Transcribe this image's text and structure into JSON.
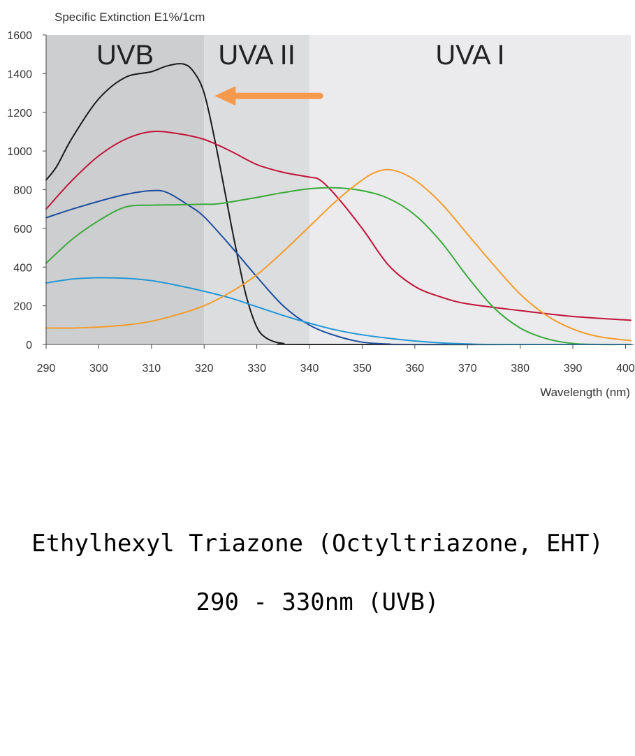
{
  "chart_data": {
    "type": "line",
    "title": "",
    "ylabel": "Specific Extinction E1%/1cm",
    "xlabel": "Wavelength (nm)",
    "xlim": [
      290,
      401
    ],
    "ylim": [
      0,
      1600
    ],
    "xticks": [
      290,
      300,
      310,
      320,
      330,
      340,
      350,
      360,
      370,
      380,
      390,
      400
    ],
    "yticks": [
      0,
      200,
      400,
      600,
      800,
      1000,
      1200,
      1400,
      1600
    ],
    "grid": false,
    "legend": "none",
    "bands": [
      {
        "label": "UVB",
        "from": 290,
        "to": 320,
        "color": "#cdcecf"
      },
      {
        "label": "UVA II",
        "from": 320,
        "to": 340,
        "color": "#dcdddf"
      },
      {
        "label": "UVA I",
        "from": 340,
        "to": 401,
        "color": "#ebebed"
      }
    ],
    "arrow": {
      "from": [
        342,
        1285
      ],
      "to": [
        322,
        1285
      ],
      "color": "#f5994d"
    },
    "series": [
      {
        "color": "#1a1a1a",
        "points": [
          [
            290,
            850
          ],
          [
            292,
            920
          ],
          [
            295,
            1070
          ],
          [
            300,
            1270
          ],
          [
            305,
            1380
          ],
          [
            310,
            1410
          ],
          [
            313,
            1440
          ],
          [
            316,
            1450
          ],
          [
            318,
            1410
          ],
          [
            320,
            1300
          ],
          [
            322,
            1060
          ],
          [
            324,
            780
          ],
          [
            326,
            500
          ],
          [
            328,
            250
          ],
          [
            330,
            90
          ],
          [
            332,
            30
          ],
          [
            335,
            5
          ],
          [
            340,
            0
          ],
          [
            401,
            0
          ]
        ]
      },
      {
        "color": "#c0143c",
        "points": [
          [
            290,
            700
          ],
          [
            295,
            850
          ],
          [
            300,
            975
          ],
          [
            305,
            1060
          ],
          [
            310,
            1100
          ],
          [
            315,
            1090
          ],
          [
            320,
            1060
          ],
          [
            325,
            1000
          ],
          [
            330,
            930
          ],
          [
            335,
            890
          ],
          [
            340,
            865
          ],
          [
            342,
            850
          ],
          [
            345,
            770
          ],
          [
            350,
            600
          ],
          [
            355,
            410
          ],
          [
            360,
            300
          ],
          [
            365,
            245
          ],
          [
            370,
            210
          ],
          [
            380,
            175
          ],
          [
            390,
            145
          ],
          [
            401,
            125
          ]
        ]
      },
      {
        "color": "#1d4fa0",
        "points": [
          [
            290,
            655
          ],
          [
            295,
            700
          ],
          [
            300,
            740
          ],
          [
            305,
            775
          ],
          [
            310,
            795
          ],
          [
            313,
            785
          ],
          [
            317,
            720
          ],
          [
            320,
            660
          ],
          [
            325,
            510
          ],
          [
            330,
            350
          ],
          [
            335,
            200
          ],
          [
            340,
            100
          ],
          [
            345,
            45
          ],
          [
            350,
            12
          ],
          [
            355,
            2
          ],
          [
            360,
            0
          ],
          [
            401,
            0
          ]
        ]
      },
      {
        "color": "#3aaa3a",
        "points": [
          [
            290,
            420
          ],
          [
            295,
            545
          ],
          [
            300,
            640
          ],
          [
            305,
            710
          ],
          [
            310,
            720
          ],
          [
            315,
            722
          ],
          [
            320,
            725
          ],
          [
            323,
            728
          ],
          [
            330,
            760
          ],
          [
            335,
            785
          ],
          [
            340,
            805
          ],
          [
            345,
            810
          ],
          [
            350,
            795
          ],
          [
            355,
            755
          ],
          [
            360,
            670
          ],
          [
            365,
            530
          ],
          [
            370,
            350
          ],
          [
            375,
            190
          ],
          [
            380,
            85
          ],
          [
            385,
            30
          ],
          [
            390,
            5
          ],
          [
            395,
            0
          ],
          [
            401,
            0
          ]
        ]
      },
      {
        "color": "#2497d6",
        "points": [
          [
            290,
            318
          ],
          [
            295,
            338
          ],
          [
            300,
            345
          ],
          [
            305,
            342
          ],
          [
            310,
            330
          ],
          [
            315,
            305
          ],
          [
            320,
            275
          ],
          [
            325,
            240
          ],
          [
            330,
            195
          ],
          [
            335,
            150
          ],
          [
            340,
            110
          ],
          [
            345,
            75
          ],
          [
            350,
            50
          ],
          [
            355,
            32
          ],
          [
            360,
            18
          ],
          [
            365,
            8
          ],
          [
            370,
            3
          ],
          [
            375,
            0
          ],
          [
            401,
            0
          ]
        ]
      },
      {
        "color": "#f39c2b",
        "points": [
          [
            290,
            85
          ],
          [
            295,
            85
          ],
          [
            300,
            90
          ],
          [
            305,
            100
          ],
          [
            310,
            120
          ],
          [
            315,
            155
          ],
          [
            320,
            200
          ],
          [
            325,
            270
          ],
          [
            330,
            360
          ],
          [
            335,
            480
          ],
          [
            340,
            610
          ],
          [
            345,
            740
          ],
          [
            350,
            850
          ],
          [
            353,
            895
          ],
          [
            356,
            900
          ],
          [
            360,
            850
          ],
          [
            365,
            730
          ],
          [
            370,
            570
          ],
          [
            375,
            410
          ],
          [
            380,
            260
          ],
          [
            385,
            150
          ],
          [
            390,
            80
          ],
          [
            395,
            40
          ],
          [
            401,
            20
          ]
        ]
      }
    ]
  },
  "caption": {
    "title": "Ethylhexyl Triazone (Octyltriazone, EHT)",
    "range": "290 - 330nm (UVB)"
  }
}
